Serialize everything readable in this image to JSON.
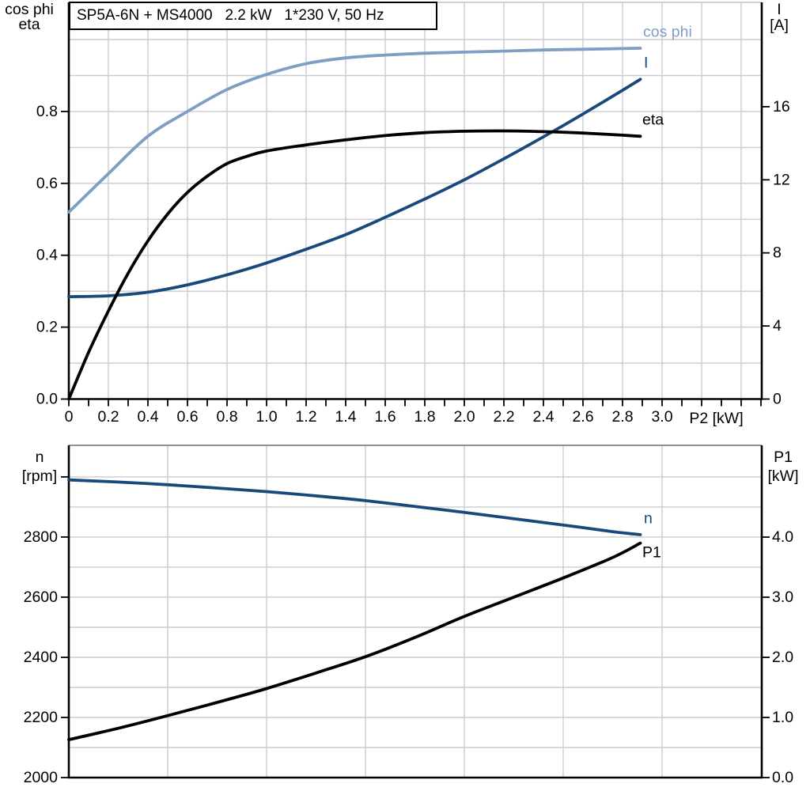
{
  "colors": {
    "light_blue": "#7E9EC3",
    "dark_blue": "#17497B",
    "black": "#000000",
    "grid": "#C9CCD0"
  },
  "chart_data": [
    {
      "id": "top",
      "type": "line",
      "title": "SP5A-6N + MS4000   2.2 kW   1*230 V, 50 Hz",
      "x_axis": {
        "label": "P2 [kW]",
        "min": 0,
        "max": 3.504,
        "grid_start": 0.2,
        "grid_end": 3.4,
        "grid_step": 0.2,
        "tick_start": 0,
        "tick_end": 3.5,
        "tick_step": 0.1,
        "labeled_values": [
          0,
          0.2,
          0.4,
          0.6,
          0.8,
          1.0,
          1.2,
          1.4,
          1.6,
          1.8,
          2.0,
          2.2,
          2.4,
          2.6,
          2.8,
          3.0
        ],
        "tick_labels": [
          "0",
          "0.2",
          "0.4",
          "0.6",
          "0.8",
          "1.0",
          "1.2",
          "1.4",
          "1.6",
          "1.8",
          "2.0",
          "2.2",
          "2.4",
          "2.6",
          "2.8",
          "3.0"
        ]
      },
      "left_axis": {
        "title_lines": [
          "cos phi",
          "eta"
        ],
        "min": 0,
        "max": 1.1035,
        "grid_start": 0.1,
        "grid_end": 1.0,
        "grid_step": 0.1,
        "tick_values": [
          0,
          0.2,
          0.4,
          0.6,
          0.8
        ],
        "tick_labels": [
          "0.0",
          "0.2",
          "0.4",
          "0.6",
          "0.8"
        ]
      },
      "right_axis": {
        "title_lines": [
          "I",
          "[A]"
        ],
        "min": 0,
        "max": 21.71,
        "tick_values": [
          0,
          4,
          8,
          12,
          16
        ],
        "tick_labels": [
          "0",
          "4",
          "8",
          "12",
          "16"
        ]
      },
      "series": [
        {
          "name": "cos phi",
          "axis": "left",
          "color_key": "light_blue",
          "points": [
            [
              0,
              0.52
            ],
            [
              0.2,
              0.627
            ],
            [
              0.4,
              0.731
            ],
            [
              0.6,
              0.8
            ],
            [
              0.8,
              0.861
            ],
            [
              1.0,
              0.903
            ],
            [
              1.2,
              0.933
            ],
            [
              1.4,
              0.949
            ],
            [
              1.6,
              0.957
            ],
            [
              1.8,
              0.962
            ],
            [
              2.0,
              0.965
            ],
            [
              2.2,
              0.968
            ],
            [
              2.4,
              0.971
            ],
            [
              2.6,
              0.973
            ],
            [
              2.8,
              0.975
            ],
            [
              2.89,
              0.976
            ]
          ]
        },
        {
          "name": "I",
          "axis": "right",
          "color_key": "dark_blue",
          "points": [
            [
              0,
              5.6
            ],
            [
              0.2,
              5.65
            ],
            [
              0.4,
              5.85
            ],
            [
              0.6,
              6.25
            ],
            [
              0.8,
              6.8
            ],
            [
              1.0,
              7.45
            ],
            [
              1.2,
              8.2
            ],
            [
              1.4,
              9.0
            ],
            [
              1.6,
              9.95
            ],
            [
              1.8,
              10.95
            ],
            [
              2.0,
              12.0
            ],
            [
              2.2,
              13.15
            ],
            [
              2.4,
              14.35
            ],
            [
              2.6,
              15.6
            ],
            [
              2.8,
              16.9
            ],
            [
              2.89,
              17.5
            ]
          ]
        },
        {
          "name": "eta",
          "axis": "left",
          "color_key": "black",
          "points": [
            [
              0,
              0
            ],
            [
              0.1,
              0.13
            ],
            [
              0.2,
              0.245
            ],
            [
              0.3,
              0.35
            ],
            [
              0.4,
              0.44
            ],
            [
              0.5,
              0.515
            ],
            [
              0.6,
              0.575
            ],
            [
              0.7,
              0.62
            ],
            [
              0.8,
              0.655
            ],
            [
              0.9,
              0.675
            ],
            [
              1.0,
              0.69
            ],
            [
              1.2,
              0.707
            ],
            [
              1.4,
              0.721
            ],
            [
              1.6,
              0.733
            ],
            [
              1.8,
              0.741
            ],
            [
              2.0,
              0.745
            ],
            [
              2.2,
              0.746
            ],
            [
              2.4,
              0.744
            ],
            [
              2.6,
              0.74
            ],
            [
              2.8,
              0.734
            ],
            [
              2.89,
              0.731
            ]
          ]
        }
      ]
    },
    {
      "id": "bottom",
      "type": "line",
      "title": "",
      "x_axis": {
        "label": "",
        "min": 0,
        "max": 3.504,
        "grid_start": 0.5,
        "grid_end": 3.0,
        "grid_step": 0.5,
        "tick_start": 0,
        "tick_end": 0,
        "tick_step": 0,
        "labeled_values": [],
        "tick_labels": []
      },
      "left_axis": {
        "title_lines": [
          "n",
          "[rpm]"
        ],
        "min": 2000,
        "max": 3105,
        "grid_start": 2100,
        "grid_end": 3000,
        "grid_step": 100,
        "tick_values": [
          2000,
          2200,
          2400,
          2600,
          2800,
          3000
        ],
        "tick_labels": [
          "2000",
          "2200",
          "2400",
          "2600",
          "2800",
          ""
        ]
      },
      "right_axis": {
        "title_lines": [
          "P1",
          "[kW]"
        ],
        "min": 0,
        "max": 5.526,
        "tick_values": [
          0,
          1,
          2,
          3,
          4
        ],
        "tick_labels": [
          "0.0",
          "1.0",
          "2.0",
          "3.0",
          "4.0"
        ]
      },
      "series": [
        {
          "name": "n",
          "axis": "left",
          "color_key": "dark_blue",
          "points": [
            [
              0,
              2990
            ],
            [
              0.25,
              2983
            ],
            [
              0.5,
              2974
            ],
            [
              0.75,
              2963
            ],
            [
              1.0,
              2951
            ],
            [
              1.25,
              2937
            ],
            [
              1.5,
              2921
            ],
            [
              1.75,
              2902
            ],
            [
              2.0,
              2882
            ],
            [
              2.25,
              2861
            ],
            [
              2.5,
              2840
            ],
            [
              2.75,
              2818
            ],
            [
              2.89,
              2808
            ]
          ]
        },
        {
          "name": "P1",
          "axis": "right",
          "color_key": "black",
          "points": [
            [
              0,
              0.63
            ],
            [
              0.25,
              0.82
            ],
            [
              0.5,
              1.03
            ],
            [
              0.75,
              1.25
            ],
            [
              1.0,
              1.48
            ],
            [
              1.25,
              1.74
            ],
            [
              1.5,
              2.01
            ],
            [
              1.75,
              2.33
            ],
            [
              2.0,
              2.68
            ],
            [
              2.25,
              3.0
            ],
            [
              2.5,
              3.32
            ],
            [
              2.75,
              3.66
            ],
            [
              2.89,
              3.9
            ]
          ]
        }
      ]
    }
  ]
}
